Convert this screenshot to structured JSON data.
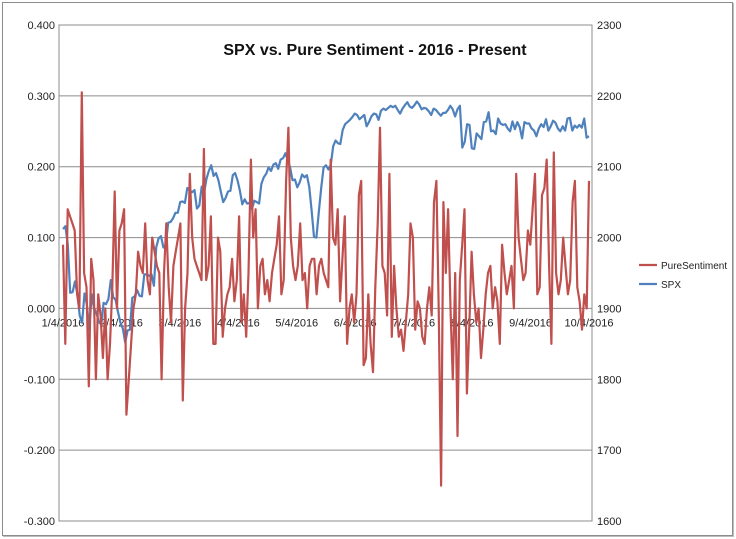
{
  "chart_data": {
    "type": "line",
    "title": "SPX vs. Pure Sentiment - 2016 - Present",
    "xlabel": "",
    "ylabel": "",
    "x_ticks": [
      "1/4/2016",
      "2/4/2016",
      "3/4/2016",
      "4/4/2016",
      "5/4/2016",
      "6/4/2016",
      "7/4/2016",
      "8/4/2016",
      "9/4/2016",
      "10/4/2016"
    ],
    "y_left": {
      "min": -0.3,
      "max": 0.4,
      "ticks": [
        "-0.300",
        "-0.200",
        "-0.100",
        "0.000",
        "0.100",
        "0.200",
        "0.300",
        "0.400"
      ]
    },
    "y_right": {
      "min": 1600,
      "max": 2300,
      "ticks": [
        "1600",
        "1700",
        "1800",
        "1900",
        "2000",
        "2100",
        "2200",
        "2300"
      ]
    },
    "grid": true,
    "legend": {
      "position": "right",
      "entries": [
        "PureSentiment",
        "SPX"
      ]
    },
    "series": [
      {
        "name": "PureSentiment",
        "axis": "left",
        "color": "#c0504d",
        "values": [
          0.09,
          -0.05,
          0.14,
          0.13,
          0.12,
          0.11,
          0.02,
          0.0,
          0.305,
          0.05,
          0.03,
          -0.11,
          0.07,
          0.04,
          -0.1,
          0.02,
          -0.01,
          -0.07,
          0.0,
          -0.1,
          -0.05,
          0.03,
          0.165,
          0.0,
          0.11,
          0.12,
          0.14,
          -0.15,
          -0.1,
          -0.05,
          0.0,
          0.02,
          0.08,
          0.06,
          0.05,
          0.12,
          0.04,
          0.02,
          0.1,
          0.08,
          0.06,
          0.05,
          -0.1,
          0.05,
          0.12,
          0.03,
          -0.02,
          0.06,
          0.08,
          0.1,
          0.12,
          -0.13,
          0.0,
          0.05,
          0.19,
          0.1,
          0.07,
          0.06,
          0.05,
          0.04,
          0.225,
          0.04,
          0.06,
          0.13,
          -0.05,
          -0.05,
          0.1,
          0.08,
          -0.04,
          0.0,
          0.02,
          0.03,
          0.07,
          0.01,
          0.04,
          0.13,
          -0.02,
          0.02,
          -0.04,
          0.05,
          0.21,
          0.1,
          0.14,
          0.0,
          0.06,
          0.07,
          0.02,
          0.04,
          0.01,
          0.05,
          0.07,
          0.09,
          0.13,
          0.02,
          0.04,
          0.18,
          0.255,
          0.1,
          0.06,
          0.04,
          0.06,
          0.12,
          0.04,
          0.05,
          0.0,
          0.06,
          0.07,
          0.07,
          0.02,
          0.06,
          0.07,
          0.05,
          0.04,
          0.03,
          0.21,
          0.1,
          0.09,
          0.14,
          0.01,
          0.07,
          0.13,
          -0.05,
          0.0,
          0.02,
          -0.02,
          0.02,
          0.16,
          0.18,
          -0.08,
          -0.07,
          0.02,
          -0.05,
          -0.09,
          0.03,
          0.12,
          0.255,
          0.06,
          0.05,
          -0.01,
          0.19,
          -0.04,
          0.06,
          0.0,
          -0.04,
          -0.03,
          -0.06,
          -0.02,
          0.02,
          0.12,
          0.1,
          -0.03,
          0.01,
          0.0,
          -0.04,
          -0.05,
          0.0,
          0.03,
          -0.01,
          0.15,
          0.18,
          0.0,
          -0.25,
          0.15,
          0.05,
          0.14,
          0.0,
          -0.1,
          0.05,
          -0.18,
          0.04,
          0.09,
          0.14,
          -0.12,
          -0.03,
          0.08,
          0.02,
          -0.02,
          0.0,
          -0.07,
          -0.03,
          0.02,
          0.05,
          0.06,
          0.0,
          0.03,
          0.01,
          -0.05,
          0.09,
          0.05,
          0.02,
          0.04,
          0.06,
          0.0,
          0.19,
          0.1,
          0.07,
          0.04,
          0.05,
          0.11,
          0.09,
          0.14,
          0.19,
          0.02,
          0.03,
          0.16,
          0.17,
          0.21,
          0.06,
          -0.05,
          0.22,
          0.05,
          0.02,
          0.04,
          0.1,
          0.06,
          0.02,
          0.04,
          0.15,
          0.18,
          0.03,
          0.01,
          -0.03,
          0.02,
          0.0,
          0.18
        ]
      },
      {
        "name": "SPX",
        "axis": "right",
        "color": "#4f81bd",
        "values": [
          2012,
          2016,
          1990,
          1922,
          1923,
          1938,
          1921,
          1890,
          1880,
          1921,
          1906,
          1869,
          1920,
          1900,
          1893,
          1881,
          1877,
          1908,
          1906,
          1913,
          1940,
          1916,
          1912,
          1895,
          1880,
          1872,
          1852,
          1869,
          1870,
          1915,
          1917,
          1926,
          1918,
          1917,
          1948,
          1948,
          1946,
          1948,
          1932,
          1986,
          1999,
          2002,
          1986,
          1990,
          2021,
          2022,
          2027,
          2035,
          2035,
          2050,
          2051,
          2049,
          2070,
          2066,
          2064,
          2067,
          2041,
          2045,
          2072,
          2063,
          2083,
          2094,
          2102,
          2087,
          2091,
          2081,
          2065,
          2050,
          2056,
          2065,
          2066,
          2088,
          2091,
          2081,
          2066,
          2047,
          2054,
          2048,
          2049,
          2040,
          2052,
          2050,
          2048,
          2076,
          2085,
          2090,
          2099,
          2094,
          2103,
          2105,
          2097,
          2110,
          2112,
          2119,
          2110,
          2099,
          2081,
          2082,
          2071,
          2078,
          2089,
          2085,
          2088,
          2071,
          2037,
          2001,
          2000,
          2036,
          2070,
          2099,
          2102,
          2096,
          2103,
          2129,
          2137,
          2133,
          2132,
          2152,
          2160,
          2163,
          2166,
          2170,
          2175,
          2173,
          2167,
          2170,
          2173,
          2157,
          2163,
          2171,
          2175,
          2174,
          2166,
          2179,
          2182,
          2180,
          2183,
          2186,
          2184,
          2186,
          2180,
          2175,
          2182,
          2187,
          2191,
          2185,
          2183,
          2187,
          2192,
          2188,
          2181,
          2183,
          2182,
          2178,
          2173,
          2182,
          2180,
          2176,
          2172,
          2176,
          2176,
          2180,
          2186,
          2181,
          2171,
          2181,
          2186,
          2127,
          2135,
          2160,
          2159,
          2126,
          2125,
          2147,
          2143,
          2139,
          2163,
          2164,
          2177,
          2150,
          2151,
          2146,
          2168,
          2161,
          2159,
          2160,
          2154,
          2150,
          2164,
          2153,
          2163,
          2156,
          2140,
          2163,
          2161,
          2161,
          2154,
          2151,
          2143,
          2154,
          2160,
          2156,
          2167,
          2151,
          2157,
          2165,
          2162,
          2154,
          2150,
          2157,
          2151,
          2168,
          2169,
          2151,
          2158,
          2155,
          2159,
          2155,
          2168,
          2141,
          2143
        ]
      }
    ]
  }
}
